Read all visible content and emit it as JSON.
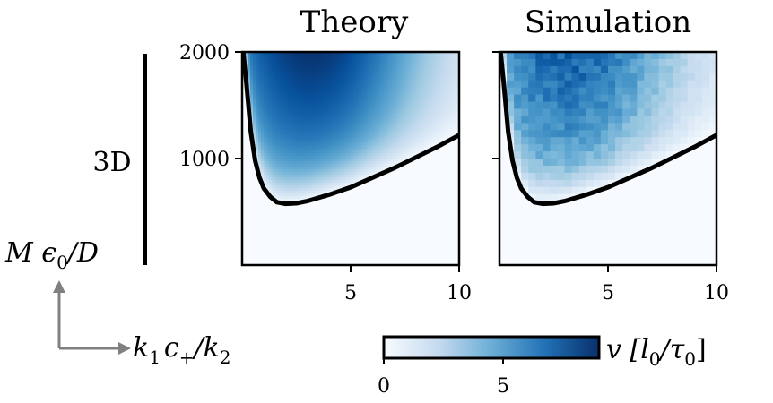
{
  "chart_data": [
    {
      "type": "heatmap",
      "title": "Theory",
      "row_label": "3D",
      "x_ticks": [
        "5",
        "10"
      ],
      "y_ticks": [
        "1000",
        "2000"
      ],
      "xlim": [
        0,
        10
      ],
      "ylim": [
        0,
        2000
      ],
      "smooth": true,
      "colormap": "Blues",
      "boundary_curve": {
        "x": [
          0.05,
          0.2,
          0.4,
          0.6,
          0.8,
          1.0,
          1.3,
          1.6,
          2.0,
          2.5,
          3.0,
          4.0,
          5.0,
          6.0,
          7.0,
          8.0,
          9.0,
          10.0
        ],
        "y": [
          2000,
          1700,
          1250,
          980,
          820,
          720,
          640,
          590,
          575,
          580,
          600,
          660,
          730,
          820,
          910,
          1010,
          1110,
          1220
        ]
      },
      "values_note": "v is zero below the boundary curve and rises to ~9 near top center"
    },
    {
      "type": "heatmap",
      "title": "Simulation",
      "x_ticks": [
        "5",
        "10"
      ],
      "y_ticks": [
        "1000",
        "2000"
      ],
      "xlim": [
        0,
        10
      ],
      "ylim": [
        0,
        2000
      ],
      "smooth": false,
      "colormap": "Blues",
      "boundary_curve": {
        "x": [
          0.05,
          0.2,
          0.4,
          0.6,
          0.8,
          1.0,
          1.3,
          1.6,
          2.0,
          2.5,
          3.0,
          4.0,
          5.0,
          6.0,
          7.0,
          8.0,
          9.0,
          10.0
        ],
        "y": [
          2000,
          1700,
          1250,
          980,
          820,
          720,
          640,
          590,
          575,
          580,
          600,
          660,
          730,
          820,
          910,
          1010,
          1110,
          1220
        ]
      }
    }
  ],
  "labels": {
    "y_axis": "M ϵ",
    "y_axis_sub": "0",
    "y_axis_tail": "/D",
    "x_axis": "k",
    "x_axis_sub1": "1",
    "x_axis_mid": "c",
    "x_axis_sup": "+",
    "x_axis_tail": "/k",
    "x_axis_sub2": "2"
  },
  "colorbar": {
    "label": "v  [l",
    "label_sub1": "0",
    "label_mid": "/τ",
    "label_sub2": "0",
    "label_end": "]",
    "ticks": [
      "0",
      "5"
    ],
    "range": [
      0,
      9
    ]
  },
  "colors": {
    "low": "#f7fbff",
    "high": "#08306b",
    "arrow": "#808080"
  }
}
